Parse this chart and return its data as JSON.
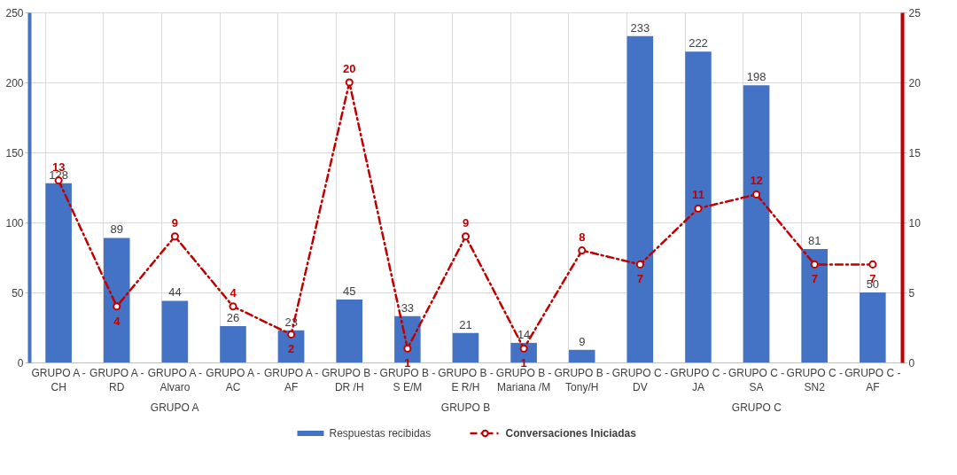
{
  "chart_data": {
    "type": "bar",
    "categories": [
      "GRUPO A - CH",
      "GRUPO A - RD",
      "GRUPO A - Alvaro",
      "GRUPO A - AC",
      "GRUPO A - AF",
      "GRUPO B - DR /H",
      "GRUPO B - S E/M",
      "GRUPO B - E R/H",
      "GRUPO B - Mariana /M",
      "GRUPO B - Tony/H",
      "GRUPO C - DV",
      "GRUPO C - JA",
      "GRUPO C - SA",
      "GRUPO C - SN2",
      "GRUPO C - AF"
    ],
    "series": [
      {
        "name": "Respuestas recibidas",
        "color": "#4472c4",
        "values": [
          128,
          89,
          44,
          26,
          23,
          45,
          33,
          21,
          14,
          9,
          233,
          222,
          198,
          81,
          50
        ]
      },
      {
        "name": "Conversaciones Iniciadas",
        "color": "#c00000",
        "type": "line",
        "axis": "y2",
        "marker": "circle",
        "line_style": "dashed",
        "values": [
          13,
          4,
          9,
          4,
          2,
          20,
          1,
          9,
          1,
          8,
          7,
          11,
          12,
          7,
          7
        ]
      }
    ],
    "ylim": [
      0,
      250
    ],
    "yticks": [
      0,
      50,
      100,
      150,
      200,
      250
    ],
    "y2lim": [
      0,
      25
    ],
    "y2ticks": [
      0,
      5,
      10,
      15,
      20,
      25
    ],
    "annotations": [
      "GRUPO A",
      "GRUPO B",
      "GRUPO C"
    ],
    "data_labels": true,
    "grid": true,
    "legend": "bottom"
  }
}
